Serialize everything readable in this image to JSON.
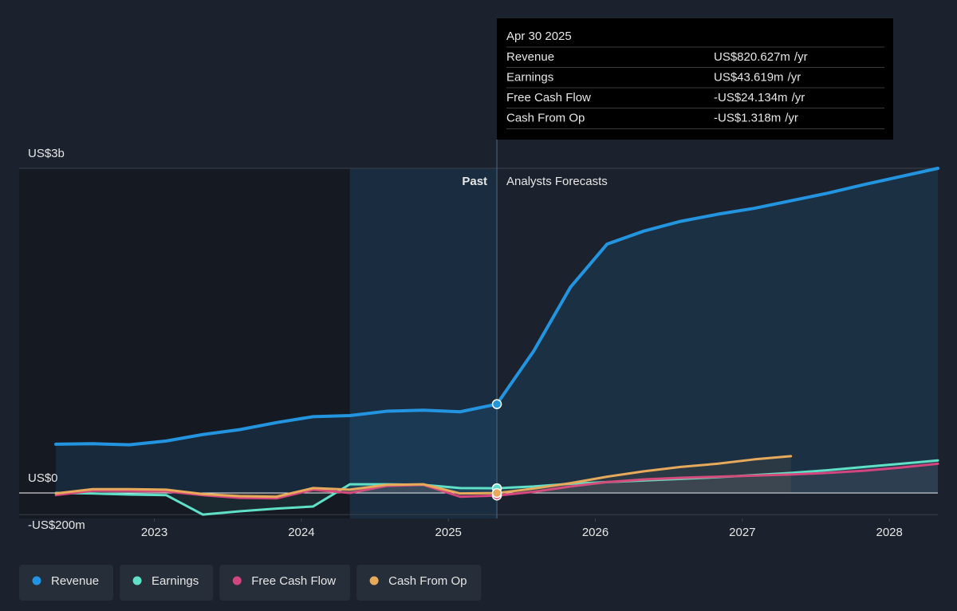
{
  "chart_data": {
    "type": "line",
    "x": [
      2022.33,
      2022.58,
      2022.83,
      2023.08,
      2023.33,
      2023.58,
      2023.83,
      2024.08,
      2024.33,
      2024.58,
      2024.83,
      2025.08,
      2025.33,
      2025.58,
      2025.83,
      2026.08,
      2026.33,
      2026.58,
      2026.83,
      2027.08,
      2027.33,
      2027.58,
      2027.83,
      2028.08,
      2028.33
    ],
    "series": [
      {
        "name": "Revenue",
        "color": "#2394df",
        "values": [
          450,
          455,
          445,
          480,
          540,
          585,
          650,
          705,
          715,
          755,
          765,
          750,
          820.627,
          1310,
          1900,
          2300,
          2420,
          2510,
          2575,
          2630,
          2700,
          2770,
          2850,
          2925,
          3000
        ]
      },
      {
        "name": "Earnings",
        "color": "#5fe0c7",
        "values": [
          0,
          -5,
          -15,
          -20,
          -200,
          -170,
          -145,
          -125,
          80,
          80,
          75,
          45,
          43.619,
          60,
          85,
          100,
          115,
          130,
          145,
          165,
          185,
          210,
          240,
          270,
          300
        ]
      },
      {
        "name": "Free Cash Flow",
        "color": "#d2457f",
        "values": [
          -20,
          20,
          20,
          15,
          -20,
          -45,
          -50,
          30,
          0,
          65,
          75,
          -35,
          -24.134,
          10,
          60,
          100,
          125,
          140,
          150,
          160,
          170,
          185,
          205,
          235,
          270
        ]
      },
      {
        "name": "Cash From Op",
        "color": "#e7a95a",
        "values": [
          -5,
          35,
          35,
          30,
          -10,
          -30,
          -35,
          45,
          30,
          75,
          80,
          -5,
          -1.318,
          40,
          90,
          150,
          200,
          240,
          270,
          310,
          340,
          null,
          null,
          null,
          null
        ]
      }
    ],
    "xlim": [
      2022.08,
      2028.33
    ],
    "xticks": [
      2023,
      2024,
      2025,
      2026,
      2027,
      2028
    ],
    "ylim": [
      -236,
      3000
    ],
    "yticks": [
      {
        "value": 3000,
        "label": "US$3b"
      },
      {
        "value": 0,
        "label": "US$0"
      },
      {
        "value": -200,
        "label": "-US$200m"
      }
    ],
    "past_start": 2024.33,
    "now": 2025.33,
    "annotations": {
      "past": "Past",
      "forecast": "Analysts Forecasts"
    },
    "tooltip": {
      "title": "Apr 30 2025",
      "rows": [
        {
          "label": "Revenue",
          "value": "US$820.627m",
          "unit": "/yr",
          "color": "#2394df"
        },
        {
          "label": "Earnings",
          "value": "US$43.619m",
          "unit": "/yr",
          "color": "#5fe0c7"
        },
        {
          "label": "Free Cash Flow",
          "value": "-US$24.134m",
          "unit": "/yr",
          "color": "#e84a4a"
        },
        {
          "label": "Cash From Op",
          "value": "-US$1.318m",
          "unit": "/yr",
          "color": "#e84a4a"
        }
      ]
    }
  }
}
